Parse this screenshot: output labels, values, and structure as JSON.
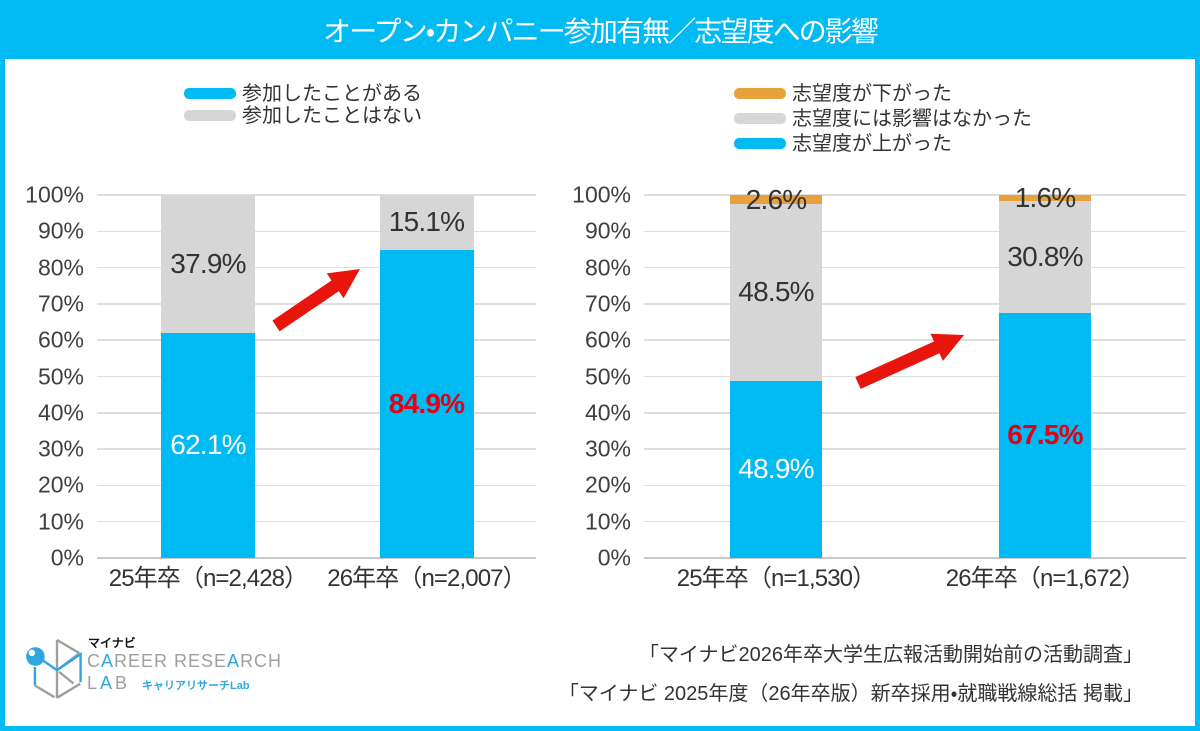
{
  "title": "オープン・カンパニー参加有無／志望度への影響",
  "colors": {
    "cyan": "#00BAF3",
    "gray": "#D6D6D6",
    "orange": "#E9A23B",
    "red": "#E60012",
    "label_dark": "#333333",
    "label_white": "#FFFFFF"
  },
  "chart_data": [
    {
      "type": "bar",
      "stacked": true,
      "categories": [
        "25年卒（n=2,428）",
        "26年卒（n=2,007）"
      ],
      "series": [
        {
          "name": "参加したことがある",
          "color_key": "cyan",
          "values": [
            62.1,
            84.9
          ],
          "labels": [
            "62.1%",
            "84.9%"
          ],
          "label_colors": [
            "#FFFFFF",
            "#E60012"
          ],
          "highlight": [
            false,
            true
          ]
        },
        {
          "name": "参加したことはない",
          "color_key": "gray",
          "values": [
            37.9,
            15.1
          ],
          "labels": [
            "37.9%",
            "15.1%"
          ],
          "label_colors": [
            "#333333",
            "#333333"
          ],
          "highlight": [
            false,
            false
          ]
        }
      ],
      "legend_order": [
        0,
        1
      ],
      "ylim": [
        0,
        100
      ],
      "ytick_step": 10,
      "yticklabels": [
        "0%",
        "10%",
        "20%",
        "30%",
        "40%",
        "50%",
        "60%",
        "70%",
        "80%",
        "90%",
        "100%"
      ],
      "grid": true,
      "legend_position": "top"
    },
    {
      "type": "bar",
      "stacked": true,
      "categories": [
        "25年卒（n=1,530）",
        "26年卒（n=1,672）"
      ],
      "series": [
        {
          "name": "志望度が上がった",
          "color_key": "cyan",
          "values": [
            48.9,
            67.5
          ],
          "labels": [
            "48.9%",
            "67.5%"
          ],
          "label_colors": [
            "#FFFFFF",
            "#E60012"
          ],
          "highlight": [
            false,
            true
          ]
        },
        {
          "name": "志望度には影響はなかった",
          "color_key": "gray",
          "values": [
            48.5,
            30.8
          ],
          "labels": [
            "48.5%",
            "30.8%"
          ],
          "label_colors": [
            "#333333",
            "#333333"
          ],
          "highlight": [
            false,
            false
          ]
        },
        {
          "name": "志望度が下がった",
          "color_key": "orange",
          "values": [
            2.6,
            1.6
          ],
          "labels": [
            "2.6%",
            "1.6%"
          ],
          "label_colors": [
            "#333333",
            "#333333"
          ],
          "highlight": [
            false,
            false
          ]
        }
      ],
      "legend_order": [
        2,
        1,
        0
      ],
      "ylim": [
        0,
        100
      ],
      "ytick_step": 10,
      "yticklabels": [
        "0%",
        "10%",
        "20%",
        "30%",
        "40%",
        "50%",
        "60%",
        "70%",
        "80%",
        "90%",
        "100%"
      ],
      "grid": true,
      "legend_position": "top"
    }
  ],
  "logo": {
    "jp_small": "マイナビ",
    "wordmark_parts": [
      "C",
      "A",
      "REER RESE",
      "A",
      "RCH"
    ],
    "lab_parts": [
      "L",
      "A",
      "B"
    ],
    "jp_blue": "キャリアリサーチLab"
  },
  "sources": [
    "「マイナビ2026年卒大学生広報活動開始前の活動調査」",
    "「マイナビ 2025年度（26年卒版）新卒採用・就職戦線総括 掲載」"
  ]
}
